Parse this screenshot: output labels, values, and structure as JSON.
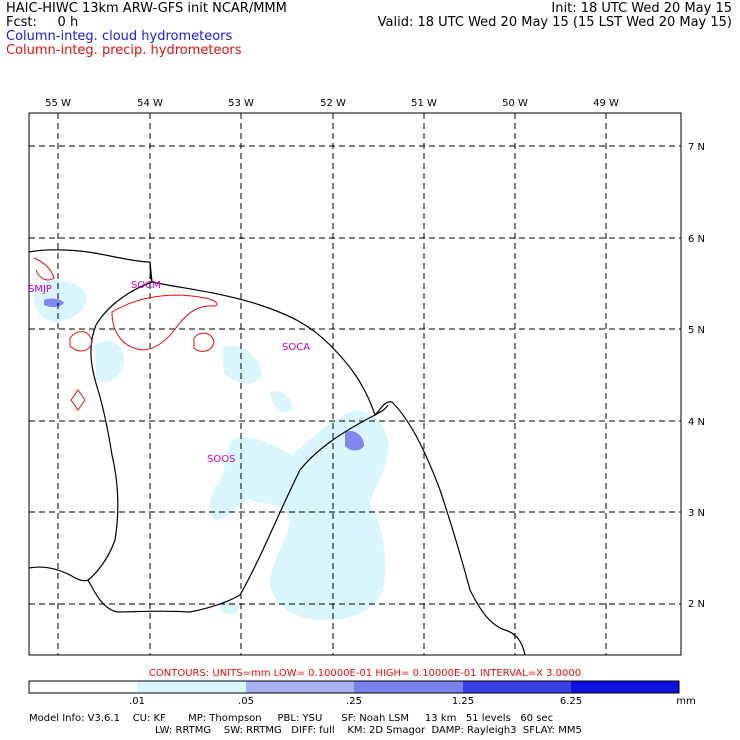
{
  "header": {
    "line1_left": "HAIC-HIWC 13km ARW-GFS init   NCAR/MMM",
    "line2_left": "Fcst:     0 h",
    "line1_right": "Init: 18 UTC Wed 20 May 15",
    "line2_right": "Valid: 18 UTC Wed 20 May 15 (15 LST Wed 20 May 15)",
    "legend_cloud": "Column-integ. cloud hydrometeors",
    "legend_precip": "Column-integ. precip. hydrometeors"
  },
  "colors": {
    "cloud": "#1a1ae0",
    "precip": "#e01010",
    "station": "#cc00cc",
    "fill_lightest": "#d8f6fc",
    "fill_light": "#aab0f4",
    "fill_mid": "#7a80ec",
    "fill_dark": "#3a40e4",
    "fill_darkest": "#1010e0"
  },
  "map": {
    "lon_labels": [
      "55 W",
      "54 W",
      "53 W",
      "52 W",
      "51 W",
      "50 W",
      "49 W"
    ],
    "lat_labels": [
      "7 N",
      "6 N",
      "5 N",
      "4 N",
      "3 N",
      "2 N"
    ],
    "stations": [
      "SMJP",
      "SOCM",
      "SOCA",
      "SOOS"
    ]
  },
  "contours_note": "CONTOURS:  UNITS=mm  LOW= 0.10000E-01  HIGH= 0.10000E-01  INTERVAL=X  3.0000",
  "colorbar": {
    "ticks": [
      ".01",
      ".05",
      ".25",
      "1.25",
      "6.25"
    ],
    "unit": "mm"
  },
  "footer": {
    "line1": "Model Info: V3.6.1    CU: KF       MP: Thompson     PBL: YSU      SF: Noah LSM     13 km   51 levels   60 sec",
    "line2": "LW: RRTMG    SW: RRTMG   DIFF: full    KM: 2D Smagor  DAMP: Rayleigh3  SFLAY: MM5"
  }
}
